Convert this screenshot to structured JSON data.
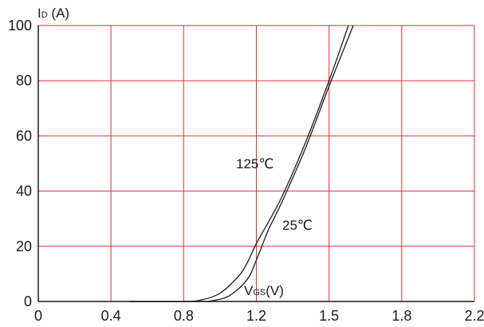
{
  "chart_data": {
    "type": "line",
    "ylabel": {
      "main": "I",
      "sub": "D",
      "unit": " (A)"
    },
    "xlabel": {
      "main": "V",
      "sub": "GS",
      "unit": "(V)"
    },
    "xlim": [
      0,
      2.2
    ],
    "ylim": [
      0,
      100
    ],
    "x_ticks": [
      "0",
      "0.4",
      "0.8",
      "1.2",
      "1.5",
      "1.8",
      "2.2"
    ],
    "y_ticks": [
      "0",
      "20",
      "40",
      "60",
      "80",
      "100"
    ],
    "grid": true,
    "colors": {
      "grid": "#e0303a",
      "curve": "#1a1a1a",
      "axis": "#1a1a1a"
    },
    "series": [
      {
        "name": "125℃",
        "points": [
          [
            0.5,
            0
          ],
          [
            0.8,
            0
          ],
          [
            0.9,
            0.6
          ],
          [
            1.0,
            3
          ],
          [
            1.1,
            9
          ],
          [
            1.15,
            14
          ],
          [
            1.2,
            21
          ],
          [
            1.3,
            37
          ],
          [
            1.4,
            57
          ],
          [
            1.5,
            80
          ],
          [
            1.58,
            100
          ]
        ]
      },
      {
        "name": "25℃",
        "points": [
          [
            0.5,
            0
          ],
          [
            0.9,
            0
          ],
          [
            0.95,
            0.2
          ],
          [
            1.05,
            2
          ],
          [
            1.15,
            8
          ],
          [
            1.2,
            15
          ],
          [
            1.25,
            26
          ],
          [
            1.3,
            35
          ],
          [
            1.4,
            55
          ],
          [
            1.5,
            78
          ],
          [
            1.6,
            100
          ]
        ]
      }
    ]
  }
}
